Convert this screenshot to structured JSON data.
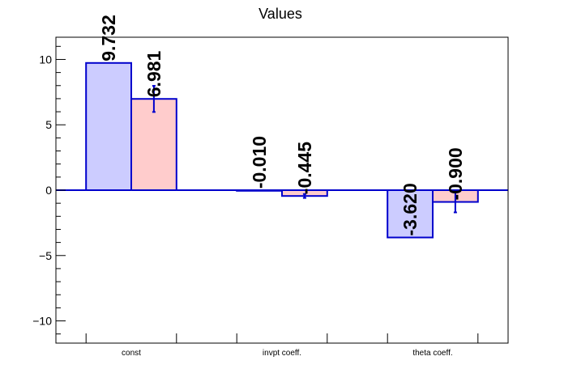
{
  "chart_data": {
    "type": "bar",
    "title": "Values",
    "categories": [
      "const",
      "invpt coeff.",
      "theta coeff."
    ],
    "ylim": [
      -11.7,
      11.7
    ],
    "yticks": [
      -10,
      -5,
      0,
      5,
      10
    ],
    "ytick_labels": [
      "−10",
      "−5",
      "0",
      "5",
      "10"
    ],
    "grid": false,
    "zero_line": true,
    "series": [
      {
        "values": [
          9.732,
          -0.01,
          -3.62
        ],
        "labels": [
          "9.732",
          "-0.010",
          "-3.620"
        ],
        "errors": [
          0,
          0,
          0
        ],
        "fill": "#ccccff",
        "stroke": "#0000cc"
      },
      {
        "values": [
          6.981,
          -0.445,
          -0.9
        ],
        "labels": [
          "6.981",
          "-0.445",
          "-0.900"
        ],
        "errors": [
          1.0,
          0.15,
          0.8
        ],
        "fill": "#ffcccc",
        "stroke": "#0000cc"
      }
    ]
  }
}
